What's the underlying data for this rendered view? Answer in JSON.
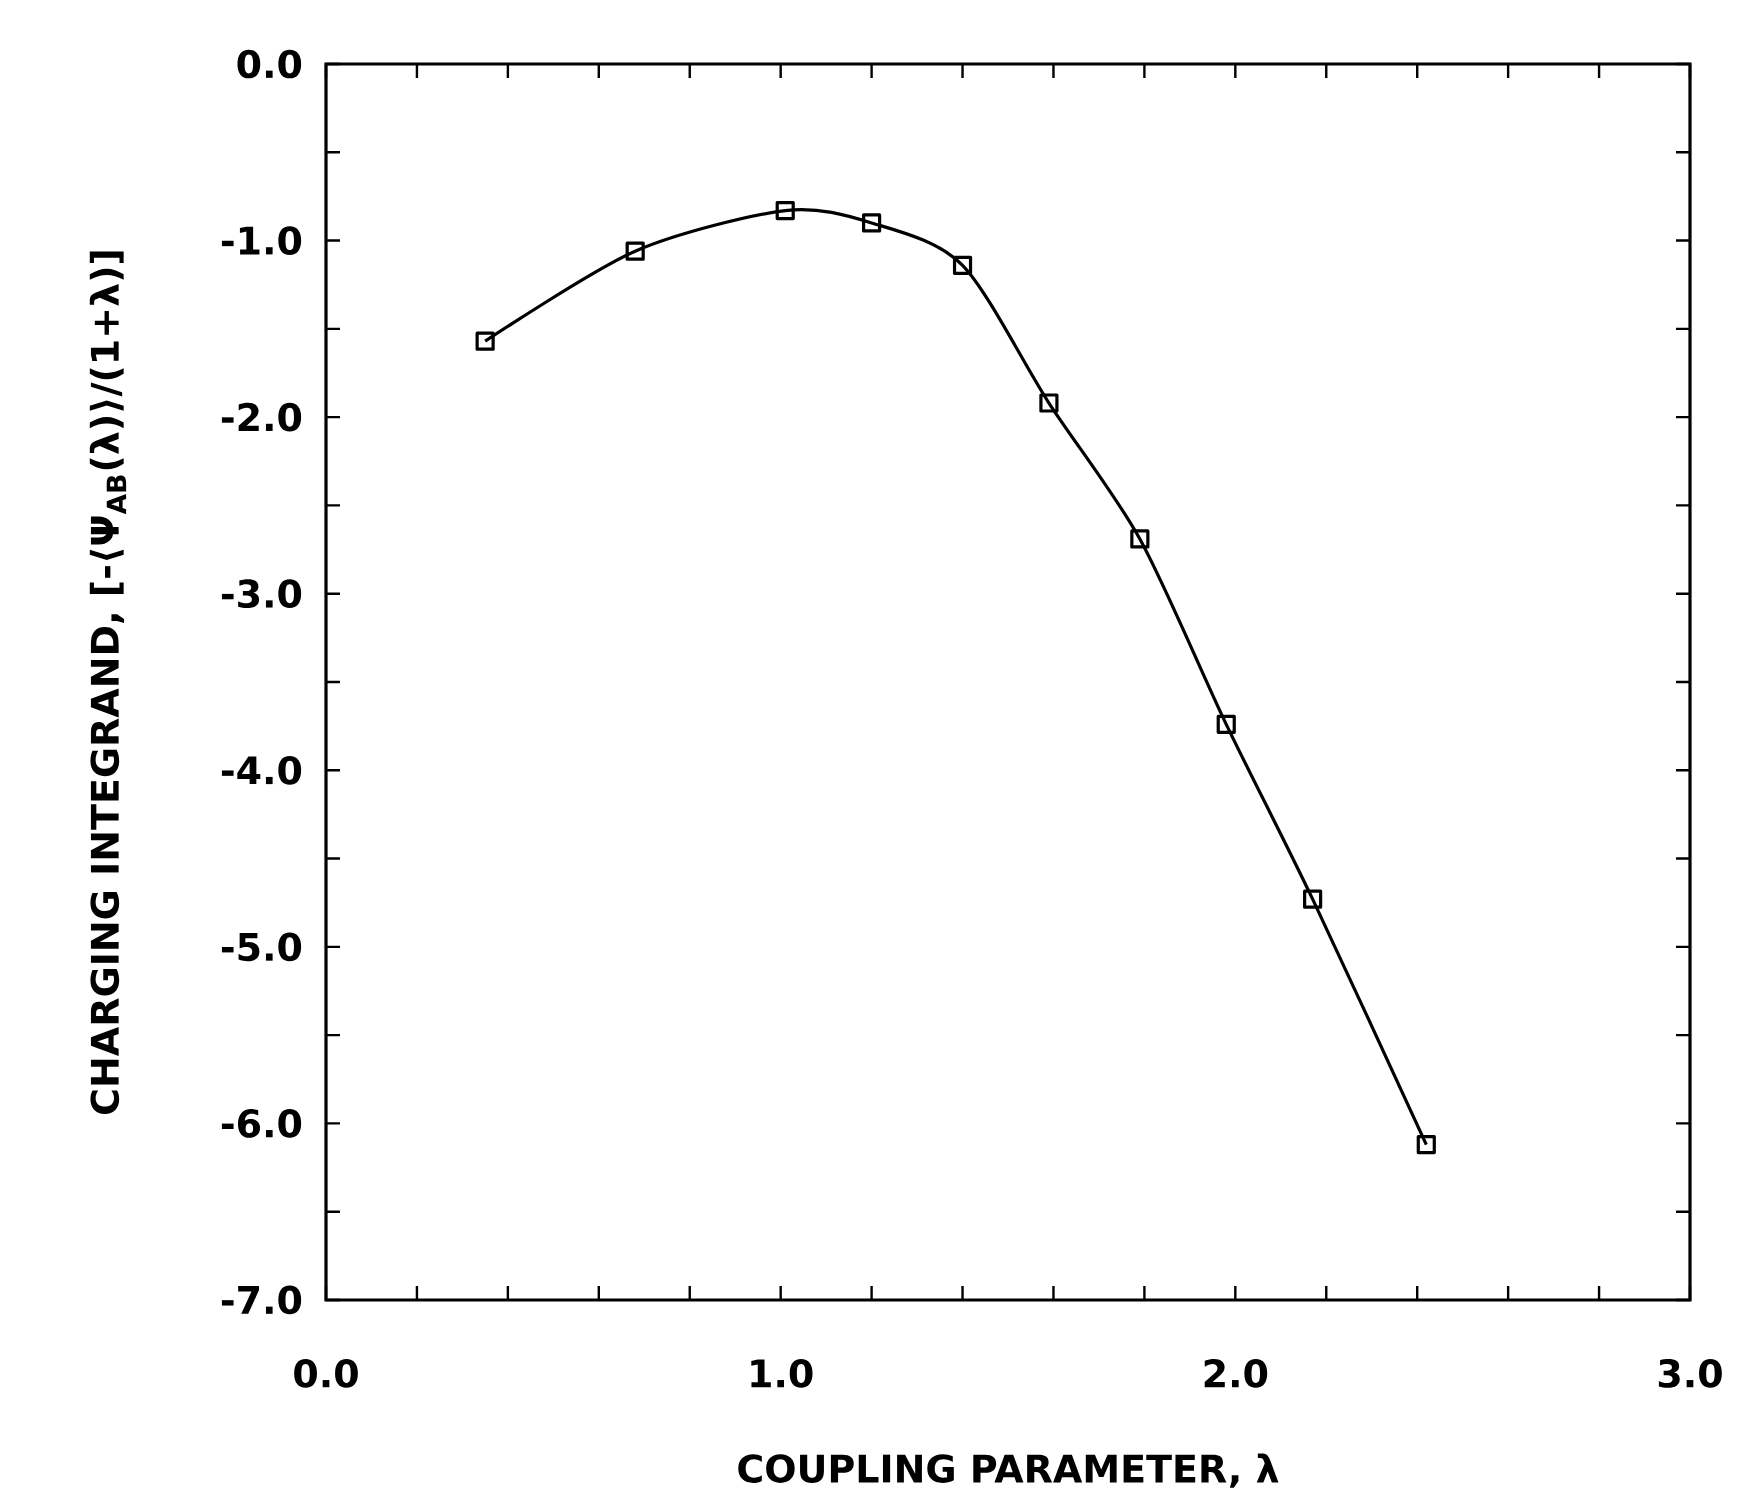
{
  "chart_data": {
    "type": "line",
    "xlabel": "COUPLING PARAMETER, λ",
    "ylabel": "CHARGING INTEGRAND, [-⟨Ψ$_{AB}$(λ)⟩/(1+λ)]",
    "x": [
      0.35,
      0.68,
      1.01,
      1.2,
      1.4,
      1.59,
      1.79,
      1.98,
      2.17,
      2.42
    ],
    "values": [
      -1.57,
      -1.06,
      -0.83,
      -0.9,
      -1.14,
      -1.92,
      -2.69,
      -3.74,
      -4.73,
      -6.12
    ],
    "color": "#000000",
    "marker": "square",
    "line_style": "solid",
    "xlim": [
      0,
      3
    ],
    "ylim": [
      -7,
      0
    ],
    "xticks": [
      {
        "value": 0,
        "label": "0.0"
      },
      {
        "value": 0.2,
        "label": null
      },
      {
        "value": 0.4,
        "label": null
      },
      {
        "value": 0.6,
        "label": null
      },
      {
        "value": 0.8,
        "label": null
      },
      {
        "value": 1,
        "label": "1.0"
      },
      {
        "value": 1.2,
        "label": null
      },
      {
        "value": 1.4,
        "label": null
      },
      {
        "value": 1.6,
        "label": null
      },
      {
        "value": 1.8,
        "label": null
      },
      {
        "value": 2,
        "label": "2.0"
      },
      {
        "value": 2.2,
        "label": null
      },
      {
        "value": 2.4,
        "label": null
      },
      {
        "value": 2.6,
        "label": null
      },
      {
        "value": 2.8,
        "label": null
      },
      {
        "value": 3,
        "label": "3.0"
      }
    ],
    "yticks": [
      {
        "value": 0,
        "label": "0.0"
      },
      {
        "value": -0.5,
        "label": null
      },
      {
        "value": -1,
        "label": "-1.0"
      },
      {
        "value": -1.5,
        "label": null
      },
      {
        "value": -2,
        "label": "-2.0"
      },
      {
        "value": -2.5,
        "label": null
      },
      {
        "value": -3,
        "label": "-3.0"
      },
      {
        "value": -3.5,
        "label": null
      },
      {
        "value": -4,
        "label": "-4.0"
      },
      {
        "value": -4.5,
        "label": null
      },
      {
        "value": -5,
        "label": "-5.0"
      },
      {
        "value": -5.5,
        "label": null
      },
      {
        "value": -6,
        "label": "-6.0"
      },
      {
        "value": -6.5,
        "label": null
      },
      {
        "value": -7,
        "label": "-7.0"
      }
    ],
    "tick_labels": true
  }
}
